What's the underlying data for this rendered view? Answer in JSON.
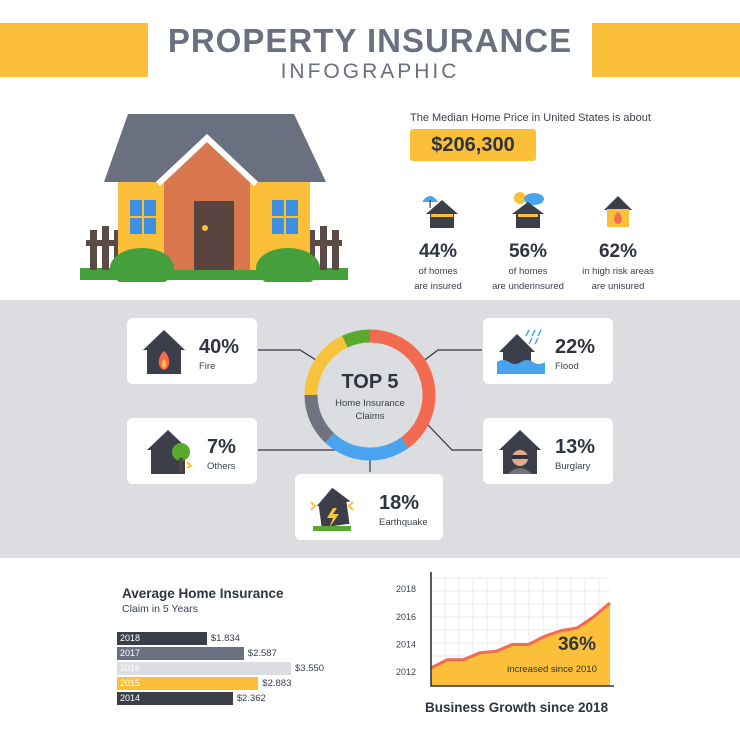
{
  "colors": {
    "accent": "#fbbf3a",
    "dark": "#3c3f4a",
    "band": "#dcdde1",
    "fire": "#f26a4f",
    "flood": "#4aa3ef",
    "burglary": "#6f737d",
    "earthquake": "#f6c33a",
    "others": "#59a92f"
  },
  "header": {
    "title": "PROPERTY INSURANCE",
    "subtitle": "INFOGRAPHIC"
  },
  "median": {
    "label": "The Median Home Price in United States is about",
    "value": "$206,300"
  },
  "stats": [
    {
      "icon": "umbrella-house-icon",
      "pct": "44%",
      "line1": "of homes",
      "line2": "are insured"
    },
    {
      "icon": "storm-house-icon",
      "pct": "56%",
      "line1": "of homes",
      "line2": "are underinsured"
    },
    {
      "icon": "fire-house-icon",
      "pct": "62%",
      "line1": "in high risk areas",
      "line2": "are unisured"
    }
  ],
  "claims": {
    "center_title": "TOP 5",
    "center_line1": "Home Insurance",
    "center_line2": "Claims",
    "items": [
      {
        "icon": "fire-house-icon",
        "pct": "40%",
        "label": "Fire"
      },
      {
        "icon": "tree-house-icon",
        "pct": "7%",
        "label": "Others"
      },
      {
        "icon": "earthquake-house-icon",
        "pct": "18%",
        "label": "Earthquake"
      },
      {
        "icon": "flood-house-icon",
        "pct": "22%",
        "label": "Flood"
      },
      {
        "icon": "burglar-house-icon",
        "pct": "13%",
        "label": "Burglary"
      }
    ]
  },
  "avg_insurance": {
    "title": "Average Home Insurance",
    "subtitle": "Claim in 5 Years"
  },
  "growth": {
    "title": "Business Growth since 2018",
    "annotation_pct": "36%",
    "annotation_text": "increased since 2010"
  },
  "chart_data": [
    {
      "type": "donut",
      "title": "TOP 5",
      "categories": [
        "Fire",
        "Flood",
        "Burglary",
        "Earthquake",
        "Others"
      ],
      "values": [
        40,
        22,
        13,
        18,
        7
      ],
      "colors": [
        "#f26a4f",
        "#4aa3ef",
        "#6f737d",
        "#f6c33a",
        "#59a92f"
      ]
    },
    {
      "type": "bar",
      "orientation": "horizontal",
      "title": "Average Home Insurance",
      "subtitle": "Claim in 5 Years",
      "categories": [
        "2018",
        "2017",
        "2016",
        "2015",
        "2014"
      ],
      "values": [
        1834,
        2587,
        3550,
        2883,
        2362
      ],
      "value_labels": [
        "$1.834",
        "$2.587",
        "$3.550",
        "$2.883",
        "$2.362"
      ],
      "colors": [
        "#3c3f4a",
        "#6b7080",
        "#dcdde1",
        "#fbbf3a",
        "#3c3f4a"
      ],
      "xlim": [
        0,
        3550
      ]
    },
    {
      "type": "area",
      "title": "Business Growth since 2018",
      "yticks": [
        "2012",
        "2014",
        "2016",
        "2018"
      ],
      "x": [
        0,
        1,
        2,
        3,
        4,
        5,
        6,
        7,
        8,
        9,
        10,
        11
      ],
      "values": [
        2012.3,
        2012.9,
        2012.9,
        2013.4,
        2013.5,
        2014.0,
        2014.0,
        2014.6,
        2015.0,
        2015.2,
        2016.0,
        2017.0
      ],
      "ylim": [
        2011.0,
        2018.8
      ],
      "annotation": "36% increased since 2010",
      "grid": true
    }
  ]
}
